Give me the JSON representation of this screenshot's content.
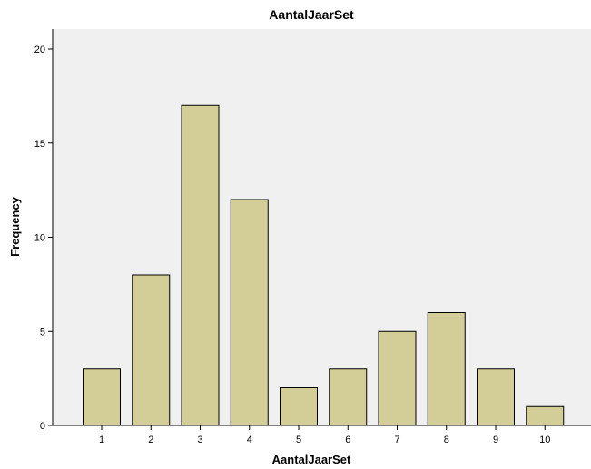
{
  "chart_data": {
    "type": "bar",
    "title": "AantalJaarSet",
    "xlabel": "AantalJaarSet",
    "ylabel": "Frequency",
    "categories": [
      "1",
      "2",
      "3",
      "4",
      "5",
      "6",
      "7",
      "8",
      "9",
      "10"
    ],
    "values": [
      3,
      8,
      17,
      12,
      2,
      3,
      5,
      6,
      3,
      1
    ],
    "ylim": [
      0,
      20
    ],
    "yticks": [
      0,
      5,
      10,
      15,
      20
    ],
    "grid": false,
    "colors": {
      "bar_fill": "#d3ce97",
      "bar_stroke": "#000000",
      "plot_background": "#f0f0f0"
    }
  }
}
